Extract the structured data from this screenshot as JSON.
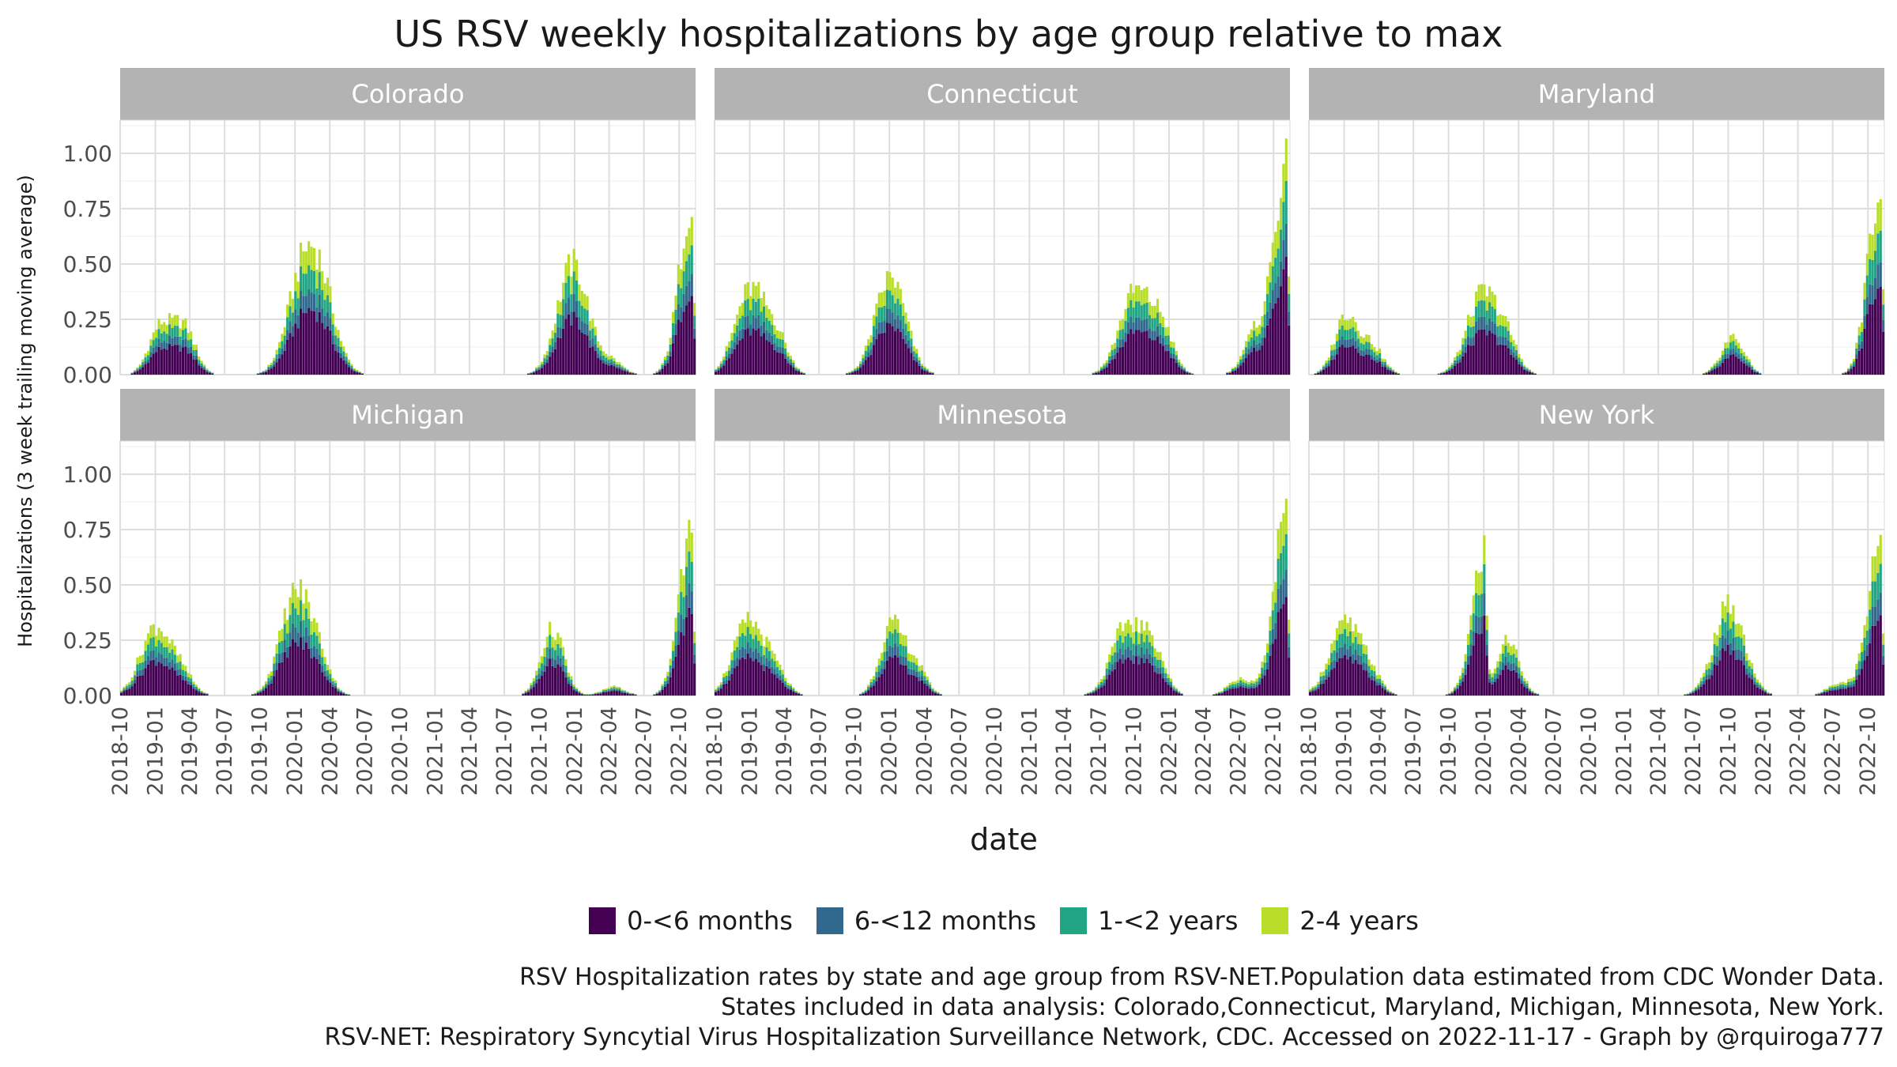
{
  "title": "US RSV weekly hospitalizations by age group relative to max",
  "chart_data": {
    "type": "bar",
    "stacked": true,
    "facets": [
      "Colorado",
      "Connecticut",
      "Maryland",
      "Michigan",
      "Minnesota",
      "New York"
    ],
    "xlabel": "date",
    "ylabel": "Hospitalizations (3 week trailing moving average)",
    "ylim": [
      0,
      1.15
    ],
    "yticks": [
      "0.00",
      "0.25",
      "0.50",
      "0.75",
      "1.00"
    ],
    "xticks": [
      "2018-10",
      "2019-01",
      "2019-04",
      "2019-07",
      "2019-10",
      "2020-01",
      "2020-04",
      "2020-07",
      "2020-10",
      "2021-01",
      "2021-04",
      "2021-07",
      "2021-10",
      "2022-01",
      "2022-04",
      "2022-07",
      "2022-10"
    ],
    "xrange": [
      "2018-10-01",
      "2022-11-13"
    ],
    "grid": true,
    "legend_position": "bottom",
    "series": [
      {
        "name": "0-<6 months",
        "color": "#440154"
      },
      {
        "name": "6-<12 months",
        "color": "#31688E"
      },
      {
        "name": "1-<2 years",
        "color": "#21A685"
      },
      {
        "name": "2-4 years",
        "color": "#B8DE29"
      }
    ],
    "season_peaks": {
      "Colorado": [
        [
          [
            2019,
            1,
            10
          ],
          0.21
        ],
        [
          [
            2019,
            3,
            14
          ],
          0.21
        ],
        [
          [
            2020,
            1,
            14
          ],
          0.37
        ],
        [
          [
            2020,
            3,
            5
          ],
          0.35
        ],
        [
          [
            2021,
            12,
            24
          ],
          0.5
        ],
        [
          [
            2022,
            4,
            4
          ],
          0.06
        ],
        [
          [
            2022,
            10,
            30
          ],
          0.78
        ]
      ],
      "Connecticut": [
        [
          [
            2018,
            12,
            30
          ],
          0.38
        ],
        [
          [
            2019,
            3,
            10
          ],
          0.15
        ],
        [
          [
            2020,
            1,
            1
          ],
          0.44
        ],
        [
          [
            2021,
            9,
            30
          ],
          0.37
        ],
        [
          [
            2021,
            12,
            10
          ],
          0.2
        ],
        [
          [
            2022,
            8,
            10
          ],
          0.18
        ],
        [
          [
            2022,
            10,
            30
          ],
          0.94
        ]
      ],
      "Maryland": [
        [
          [
            2019,
            1,
            3
          ],
          0.27
        ],
        [
          [
            2019,
            3,
            10
          ],
          0.13
        ],
        [
          [
            2019,
            12,
            25
          ],
          0.36
        ],
        [
          [
            2020,
            2,
            28
          ],
          0.13
        ],
        [
          [
            2021,
            10,
            10
          ],
          0.17
        ],
        [
          [
            2022,
            10,
            30
          ],
          0.85
        ]
      ],
      "Michigan": [
        [
          [
            2018,
            12,
            30
          ],
          0.31
        ],
        [
          [
            2019,
            3,
            10
          ],
          0.08
        ],
        [
          [
            2019,
            12,
            31
          ],
          0.46
        ],
        [
          [
            2020,
            3,
            1
          ],
          0.13
        ],
        [
          [
            2021,
            11,
            1
          ],
          0.3
        ],
        [
          [
            2022,
            4,
            10
          ],
          0.04
        ],
        [
          [
            2022,
            10,
            30
          ],
          0.77
        ]
      ],
      "Minnesota": [
        [
          [
            2018,
            12,
            25
          ],
          0.33
        ],
        [
          [
            2019,
            3,
            5
          ],
          0.1
        ],
        [
          [
            2020,
            1,
            1
          ],
          0.3
        ],
        [
          [
            2020,
            3,
            1
          ],
          0.15
        ],
        [
          [
            2021,
            9,
            10
          ],
          0.32
        ],
        [
          [
            2021,
            11,
            20
          ],
          0.19
        ],
        [
          [
            2022,
            7,
            1
          ],
          0.08
        ],
        [
          [
            2022,
            10,
            30
          ],
          0.8
        ]
      ],
      "New York": [
        [
          [
            2018,
            12,
            30
          ],
          0.32
        ],
        [
          [
            2019,
            3,
            5
          ],
          0.09
        ],
        [
          [
            2019,
            12,
            30
          ],
          0.63
        ],
        [
          [
            2020,
            3,
            1
          ],
          0.25
        ],
        [
          [
            2021,
            10,
            1
          ],
          0.41
        ],
        [
          [
            2022,
            7,
            15
          ],
          0.06
        ],
        [
          [
            2022,
            10,
            30
          ],
          0.72
        ]
      ]
    }
  },
  "caption": {
    "line1": "RSV Hospitalization rates by state and age group from RSV-NET.Population data estimated from CDC Wonder Data.",
    "line2": "States included in data analysis: Colorado,Connecticut, Maryland, Michigan, Minnesota, New York.",
    "line3": "RSV-NET: Respiratory Syncytial Virus Hospitalization Surveillance Network, CDC. Accessed on 2022-11-17 - Graph by @rquiroga777"
  }
}
